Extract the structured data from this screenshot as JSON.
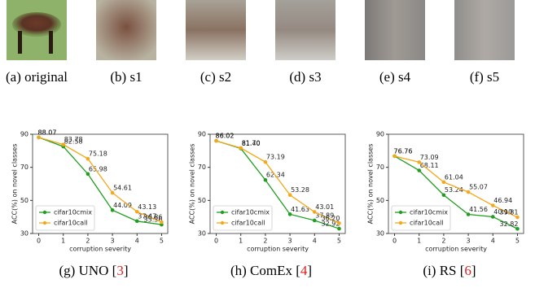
{
  "images": [
    {
      "caption": "(a) original"
    },
    {
      "caption": "(b) s1"
    },
    {
      "caption": "(c) s2"
    },
    {
      "caption": "(d) s3"
    },
    {
      "caption": "(e) s4"
    },
    {
      "caption": "(f) s5"
    }
  ],
  "chart_data": [
    {
      "type": "line",
      "caption": [
        "(g) UNO [",
        "3",
        "]"
      ],
      "xlabel": "corruption severity",
      "ylabel": "ACC(%) on novel classes",
      "x": [
        0,
        1,
        2,
        3,
        4,
        5
      ],
      "xlim": [
        -0.25,
        5.25
      ],
      "xticks": [
        0,
        1,
        2,
        3,
        4,
        5
      ],
      "ylim": [
        30,
        90
      ],
      "yticks": [
        30,
        50,
        70,
        90
      ],
      "legend": "lower left",
      "series": [
        {
          "name": "cifar10cmix",
          "color": "#1f9e1f",
          "values": [
            88.07,
            82.58,
            65.98,
            44.09,
            37.47,
            35.36
          ],
          "value_labels": [
            "88.07",
            "82.58",
            "65.98",
            "44.09",
            "37.47",
            "35.36"
          ]
        },
        {
          "name": "cifar10call",
          "color": "#f5a81c",
          "values": [
            88.07,
            83.78,
            75.18,
            54.61,
            43.13,
            36.86
          ],
          "value_labels": [
            "88.07",
            "83.78",
            "75.18",
            "54.61",
            "43.13",
            "36.86"
          ]
        }
      ]
    },
    {
      "type": "line",
      "caption": [
        "(h) ComEx [",
        "4",
        "]"
      ],
      "xlabel": "corruption severity",
      "ylabel": "ACC(%) on novel classes",
      "x": [
        0,
        1,
        2,
        3,
        4,
        5
      ],
      "xlim": [
        -0.25,
        5.25
      ],
      "xticks": [
        0,
        1,
        2,
        3,
        4,
        5
      ],
      "ylim": [
        30,
        90
      ],
      "yticks": [
        30,
        50,
        70,
        90
      ],
      "legend": "lower left",
      "series": [
        {
          "name": "cifar10cmix",
          "color": "#1f9e1f",
          "values": [
            86.02,
            81.4,
            62.34,
            41.63,
            37.89,
            32.92
          ],
          "value_labels": [
            "86.02",
            "81.40",
            "62.34",
            "41.63",
            "37.89",
            "32.92"
          ]
        },
        {
          "name": "cifar10call",
          "color": "#f5a81c",
          "values": [
            86.02,
            81.7,
            73.19,
            53.28,
            43.01,
            36.2
          ],
          "value_labels": [
            "86.02",
            "81.70",
            "73.19",
            "53.28",
            "43.01",
            "36.20"
          ]
        }
      ]
    },
    {
      "type": "line",
      "caption": [
        "(i) RS [",
        "6",
        "]"
      ],
      "xlabel": "corruption severity",
      "ylabel": "ACC(%) on novel classes",
      "x": [
        0,
        1,
        2,
        3,
        4,
        5
      ],
      "xlim": [
        -0.25,
        5.25
      ],
      "xticks": [
        0,
        1,
        2,
        3,
        4,
        5
      ],
      "ylim": [
        30,
        90
      ],
      "yticks": [
        30,
        50,
        70,
        90
      ],
      "legend": "lower left",
      "series": [
        {
          "name": "cifar10cmix",
          "color": "#1f9e1f",
          "values": [
            76.76,
            68.11,
            53.24,
            41.56,
            40.1,
            32.82
          ],
          "value_labels": [
            "76.76",
            "68.11",
            "53.24",
            "41.56",
            "40.10",
            "32.82"
          ]
        },
        {
          "name": "cifar10call",
          "color": "#f5a81c",
          "values": [
            76.76,
            73.09,
            61.04,
            55.07,
            46.94,
            39.81
          ],
          "value_labels": [
            "76.76",
            "73.09",
            "61.04",
            "55.07",
            "46.94",
            "39.81"
          ]
        }
      ]
    }
  ]
}
